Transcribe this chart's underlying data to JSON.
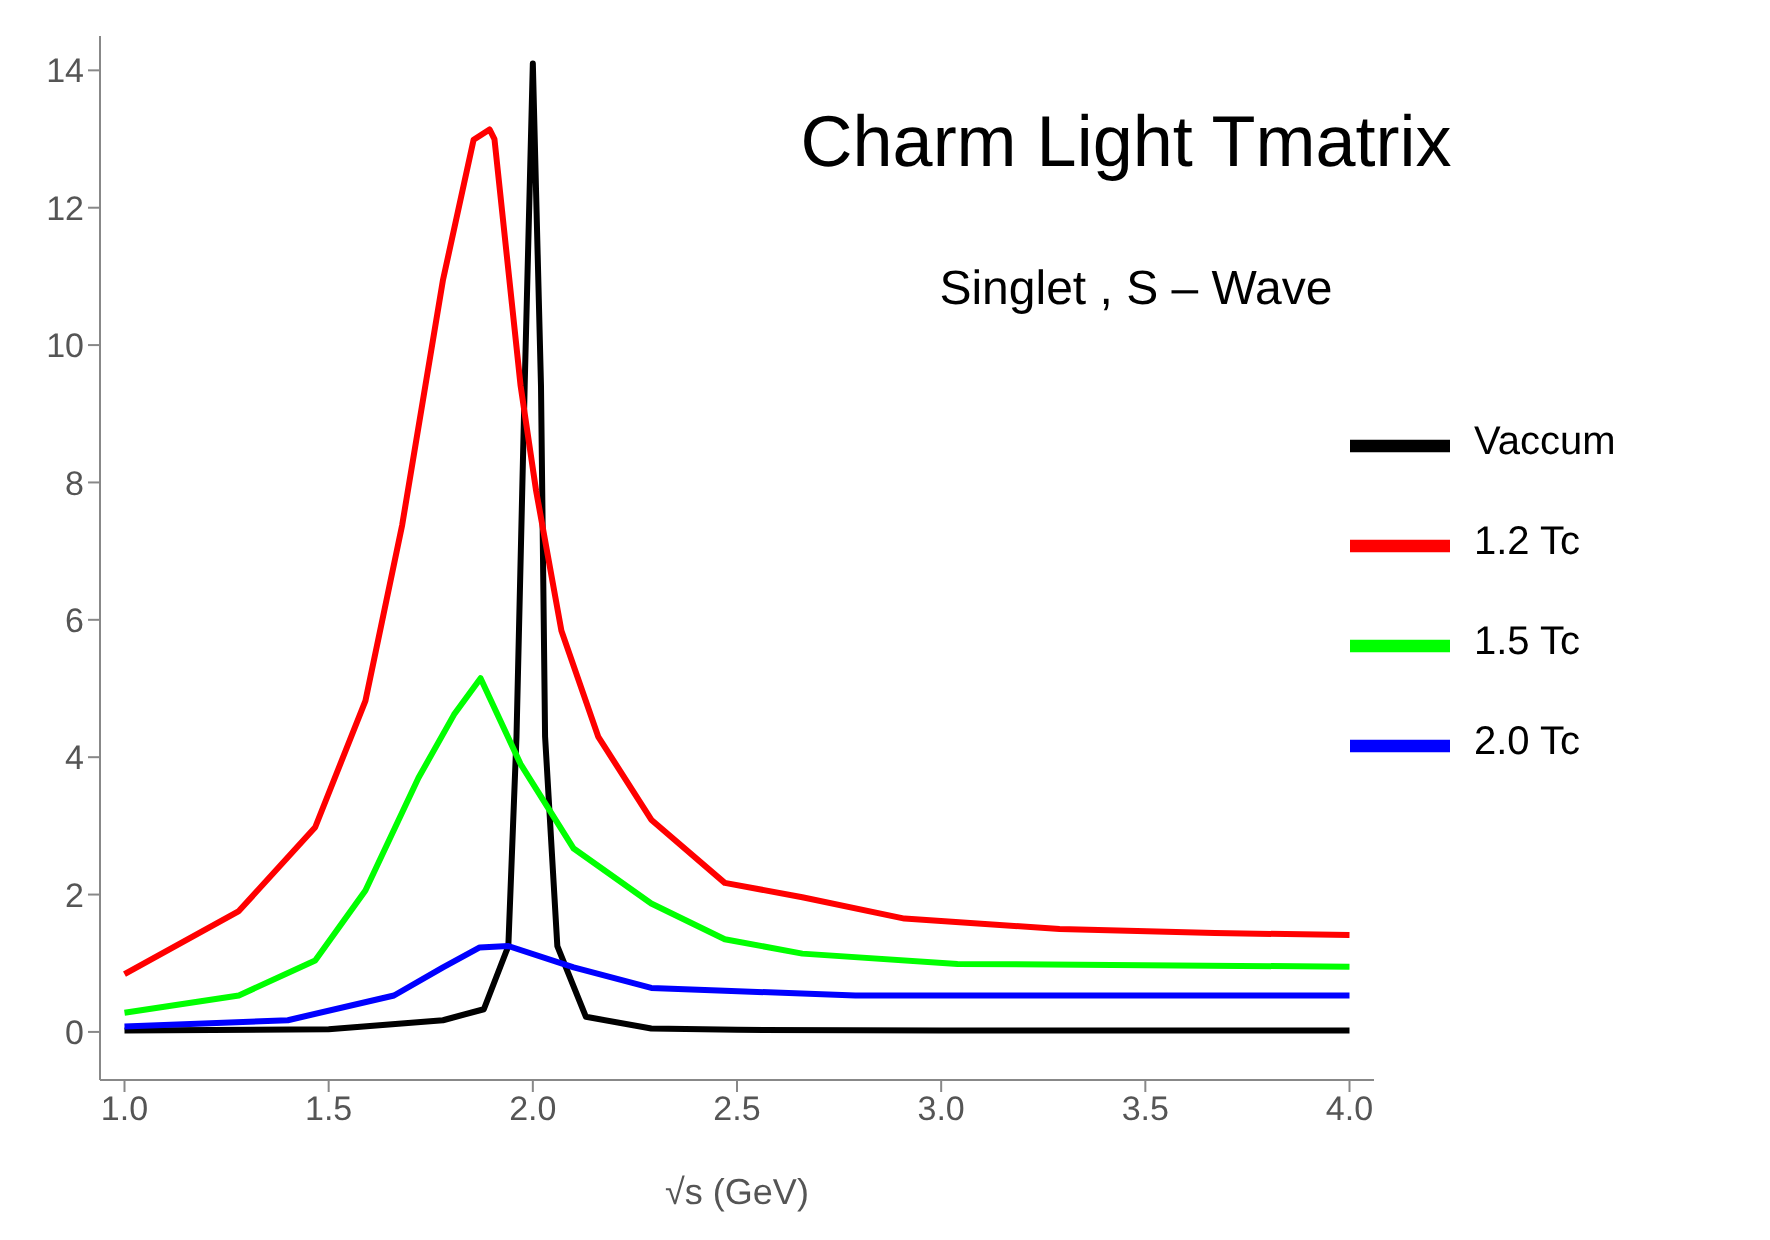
{
  "chart_data": {
    "type": "line",
    "title": "Charm Light Tmatrix",
    "subtitle": "Singlet , S – Wave",
    "xlabel": "√s (GeV)",
    "xlim": [
      0.94,
      4.06
    ],
    "xticks": [
      {
        "value": 1,
        "label": "1.0"
      },
      1.5,
      {
        "value": 2,
        "label": "2.0"
      },
      2.5,
      {
        "value": 3,
        "label": "3.0"
      },
      3.5,
      {
        "value": 4,
        "label": "4.0"
      }
    ],
    "ylim": [
      -0.7,
      14.5
    ],
    "yticks": [
      0,
      2,
      4,
      6,
      8,
      10,
      12,
      14
    ],
    "grid": false,
    "legend": "right",
    "marker": "none",
    "line_style": "solid",
    "series": [
      {
        "name": "Vaccum",
        "color": "#000000",
        "x": [
          1.0,
          1.5,
          1.78,
          1.88,
          1.94,
          1.96,
          1.98,
          2.0,
          2.02,
          2.03,
          2.06,
          2.13,
          2.29,
          2.5,
          3.0,
          3.5,
          4.0
        ],
        "values": [
          0.02,
          0.04,
          0.17,
          0.33,
          1.25,
          4.3,
          9.4,
          14.1,
          9.4,
          4.3,
          1.25,
          0.22,
          0.05,
          0.03,
          0.02,
          0.02,
          0.02
        ]
      },
      {
        "name": "1.2 Tc",
        "color": "#ff0000",
        "x": [
          1.0,
          1.28,
          1.467,
          1.59,
          1.68,
          1.78,
          1.855,
          1.894,
          1.906,
          1.97,
          2.008,
          2.07,
          2.16,
          2.29,
          2.47,
          2.66,
          2.91,
          3.29,
          3.67,
          4.0
        ],
        "values": [
          0.84,
          1.76,
          2.98,
          4.82,
          7.38,
          10.95,
          12.99,
          13.14,
          13.0,
          9.41,
          7.88,
          5.84,
          4.3,
          3.09,
          2.17,
          1.96,
          1.65,
          1.5,
          1.44,
          1.41
        ]
      },
      {
        "name": "1.5 Tc",
        "color": "#00ff00",
        "x": [
          1.0,
          1.28,
          1.467,
          1.59,
          1.72,
          1.807,
          1.872,
          1.97,
          2.1,
          2.29,
          2.47,
          2.66,
          3.04,
          4.0
        ],
        "values": [
          0.28,
          0.53,
          1.04,
          2.06,
          3.7,
          4.62,
          5.15,
          3.9,
          2.67,
          1.87,
          1.35,
          1.14,
          0.99,
          0.95
        ]
      },
      {
        "name": "2.0 Tc",
        "color": "#0000ff",
        "x": [
          1.0,
          1.4,
          1.66,
          1.78,
          1.87,
          1.94,
          2.1,
          2.29,
          2.47,
          2.79,
          4.0
        ],
        "values": [
          0.08,
          0.17,
          0.53,
          0.94,
          1.23,
          1.25,
          0.94,
          0.64,
          0.6,
          0.53,
          0.53
        ]
      }
    ]
  }
}
